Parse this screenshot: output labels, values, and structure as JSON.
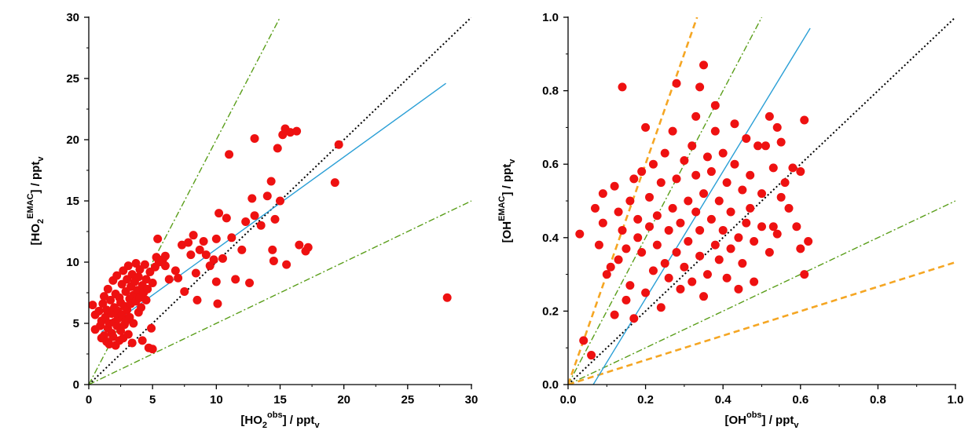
{
  "chart_data": [
    {
      "type": "scatter",
      "xlabel": {
        "base": "[HO",
        "sub": "2",
        "sup": "obs",
        "tail": "] / ppt",
        "unit_sub": "v"
      },
      "ylabel": {
        "base": "[HO",
        "sub": "2",
        "sup": "EMAC",
        "tail": "] / ppt",
        "unit_sub": "v"
      },
      "xlim": [
        0,
        30
      ],
      "ylim": [
        0,
        30
      ],
      "xticks": [
        0,
        5,
        10,
        15,
        20,
        25,
        30
      ],
      "yticks": [
        0,
        5,
        10,
        15,
        20,
        25,
        30
      ],
      "grid": false,
      "lines": [
        {
          "style": "dotted",
          "color": "#000000",
          "points": [
            [
              0,
              0
            ],
            [
              30,
              30
            ]
          ]
        },
        {
          "style": "dashdot",
          "color": "#5a9e1a",
          "points": [
            [
              0,
              0
            ],
            [
              15,
              30
            ]
          ]
        },
        {
          "style": "dashdot",
          "color": "#5a9e1a",
          "points": [
            [
              0,
              0
            ],
            [
              30,
              15
            ]
          ]
        },
        {
          "style": "solid",
          "color": "#2a9fd6",
          "points": [
            [
              1,
              4.3
            ],
            [
              28,
              24.6
            ]
          ]
        }
      ],
      "points_color": "#ee1111",
      "points": [
        [
          0.3,
          6.5
        ],
        [
          0.5,
          5.7
        ],
        [
          0.5,
          4.5
        ],
        [
          0.8,
          6.0
        ],
        [
          0.9,
          4.8
        ],
        [
          1.0,
          5.2
        ],
        [
          1.0,
          3.8
        ],
        [
          1.1,
          6.6
        ],
        [
          1.2,
          4.0
        ],
        [
          1.2,
          7.2
        ],
        [
          1.3,
          5.5
        ],
        [
          1.4,
          3.5
        ],
        [
          1.4,
          6.1
        ],
        [
          1.5,
          4.6
        ],
        [
          1.5,
          7.8
        ],
        [
          1.6,
          5.0
        ],
        [
          1.6,
          3.3
        ],
        [
          1.7,
          6.9
        ],
        [
          1.8,
          5.8
        ],
        [
          1.8,
          4.2
        ],
        [
          1.9,
          8.5
        ],
        [
          1.9,
          3.9
        ],
        [
          2.0,
          6.3
        ],
        [
          2.0,
          5.1
        ],
        [
          2.1,
          7.4
        ],
        [
          2.1,
          3.2
        ],
        [
          2.2,
          4.8
        ],
        [
          2.2,
          8.9
        ],
        [
          2.3,
          6.0
        ],
        [
          2.3,
          5.4
        ],
        [
          2.4,
          7.1
        ],
        [
          2.4,
          3.6
        ],
        [
          2.5,
          4.4
        ],
        [
          2.5,
          6.7
        ],
        [
          2.6,
          8.2
        ],
        [
          2.6,
          5.7
        ],
        [
          2.7,
          3.8
        ],
        [
          2.7,
          9.3
        ],
        [
          2.8,
          6.4
        ],
        [
          2.8,
          4.9
        ],
        [
          2.9,
          7.6
        ],
        [
          2.9,
          5.2
        ],
        [
          3.0,
          8.6
        ],
        [
          3.0,
          6.1
        ],
        [
          3.1,
          4.1
        ],
        [
          3.1,
          9.7
        ],
        [
          3.2,
          7.0
        ],
        [
          3.2,
          5.5
        ],
        [
          3.3,
          8.0
        ],
        [
          3.3,
          6.6
        ],
        [
          3.4,
          3.4
        ],
        [
          3.4,
          9.0
        ],
        [
          3.5,
          7.3
        ],
        [
          3.5,
          5.0
        ],
        [
          3.6,
          8.4
        ],
        [
          3.7,
          6.8
        ],
        [
          3.7,
          9.9
        ],
        [
          3.8,
          7.7
        ],
        [
          3.9,
          5.9
        ],
        [
          3.9,
          8.8
        ],
        [
          4.0,
          7.1
        ],
        [
          4.0,
          9.4
        ],
        [
          4.1,
          6.3
        ],
        [
          4.2,
          8.1
        ],
        [
          4.2,
          3.6
        ],
        [
          4.3,
          7.5
        ],
        [
          4.4,
          9.8
        ],
        [
          4.5,
          8.6
        ],
        [
          4.5,
          6.9
        ],
        [
          4.6,
          7.8
        ],
        [
          4.7,
          3.0
        ],
        [
          4.8,
          9.2
        ],
        [
          4.9,
          4.6
        ],
        [
          5.0,
          2.9
        ],
        [
          5.0,
          8.3
        ],
        [
          5.2,
          9.6
        ],
        [
          5.3,
          10.4
        ],
        [
          5.4,
          11.9
        ],
        [
          5.5,
          10.0
        ],
        [
          5.8,
          10.2
        ],
        [
          6.0,
          9.7
        ],
        [
          6.0,
          10.5
        ],
        [
          6.3,
          8.6
        ],
        [
          6.8,
          9.3
        ],
        [
          7.0,
          8.7
        ],
        [
          7.3,
          11.4
        ],
        [
          7.5,
          7.6
        ],
        [
          7.8,
          11.6
        ],
        [
          8.0,
          10.6
        ],
        [
          8.2,
          12.2
        ],
        [
          8.4,
          9.1
        ],
        [
          8.5,
          6.9
        ],
        [
          8.7,
          11.0
        ],
        [
          9.0,
          11.7
        ],
        [
          9.2,
          10.6
        ],
        [
          9.5,
          9.7
        ],
        [
          9.8,
          10.2
        ],
        [
          10.0,
          8.4
        ],
        [
          10.0,
          11.9
        ],
        [
          10.1,
          6.6
        ],
        [
          10.2,
          14.0
        ],
        [
          10.5,
          10.3
        ],
        [
          10.8,
          13.6
        ],
        [
          11.0,
          18.8
        ],
        [
          11.2,
          12.0
        ],
        [
          11.5,
          8.6
        ],
        [
          12.0,
          11.0
        ],
        [
          12.3,
          13.3
        ],
        [
          12.6,
          8.3
        ],
        [
          12.8,
          15.2
        ],
        [
          13.0,
          20.1
        ],
        [
          13.0,
          13.8
        ],
        [
          13.5,
          13.0
        ],
        [
          14.0,
          15.4
        ],
        [
          14.3,
          16.6
        ],
        [
          14.4,
          11.0
        ],
        [
          14.5,
          10.1
        ],
        [
          14.6,
          13.5
        ],
        [
          14.8,
          19.3
        ],
        [
          15.0,
          15.0
        ],
        [
          15.2,
          20.4
        ],
        [
          15.4,
          20.9
        ],
        [
          15.5,
          9.8
        ],
        [
          15.8,
          20.6
        ],
        [
          16.3,
          20.7
        ],
        [
          16.5,
          11.4
        ],
        [
          17.0,
          10.9
        ],
        [
          17.2,
          11.2
        ],
        [
          19.3,
          16.5
        ],
        [
          19.6,
          19.6
        ],
        [
          28.1,
          7.1
        ]
      ]
    },
    {
      "type": "scatter",
      "xlabel": {
        "base": "[OH",
        "sub": "",
        "sup": "obs",
        "tail": "] / ppt",
        "unit_sub": "v"
      },
      "ylabel": {
        "base": "[OH",
        "sub": "",
        "sup": "EMAC",
        "tail": "] / ppt",
        "unit_sub": "v"
      },
      "xlim": [
        0,
        1
      ],
      "ylim": [
        0,
        1
      ],
      "xticks": [
        0.0,
        0.2,
        0.4,
        0.6,
        0.8,
        1.0
      ],
      "yticks": [
        0.0,
        0.2,
        0.4,
        0.6,
        0.8,
        1.0
      ],
      "grid": false,
      "lines": [
        {
          "style": "dotted",
          "color": "#000000",
          "points": [
            [
              0,
              0
            ],
            [
              1,
              1
            ]
          ]
        },
        {
          "style": "dashdot",
          "color": "#5a9e1a",
          "points": [
            [
              0,
              0
            ],
            [
              0.5,
              1
            ]
          ]
        },
        {
          "style": "dashdot",
          "color": "#5a9e1a",
          "points": [
            [
              0,
              0
            ],
            [
              1,
              0.5
            ]
          ]
        },
        {
          "style": "dashed",
          "color": "#f5a623",
          "points": [
            [
              0,
              0
            ],
            [
              0.333,
              1
            ]
          ]
        },
        {
          "style": "dashed",
          "color": "#f5a623",
          "points": [
            [
              0,
              0
            ],
            [
              1,
              0.333
            ]
          ]
        },
        {
          "style": "solid",
          "color": "#2a9fd6",
          "points": [
            [
              0.065,
              0.0
            ],
            [
              0.625,
              0.97
            ]
          ]
        }
      ],
      "points_color": "#ee1111",
      "points": [
        [
          0.03,
          0.41
        ],
        [
          0.04,
          0.12
        ],
        [
          0.06,
          0.08
        ],
        [
          0.07,
          0.48
        ],
        [
          0.08,
          0.38
        ],
        [
          0.09,
          0.44
        ],
        [
          0.09,
          0.52
        ],
        [
          0.1,
          0.3
        ],
        [
          0.11,
          0.32
        ],
        [
          0.12,
          0.19
        ],
        [
          0.12,
          0.54
        ],
        [
          0.13,
          0.34
        ],
        [
          0.13,
          0.47
        ],
        [
          0.14,
          0.81
        ],
        [
          0.14,
          0.42
        ],
        [
          0.15,
          0.37
        ],
        [
          0.15,
          0.23
        ],
        [
          0.16,
          0.5
        ],
        [
          0.16,
          0.27
        ],
        [
          0.17,
          0.56
        ],
        [
          0.17,
          0.18
        ],
        [
          0.18,
          0.4
        ],
        [
          0.18,
          0.45
        ],
        [
          0.19,
          0.58
        ],
        [
          0.19,
          0.36
        ],
        [
          0.2,
          0.25
        ],
        [
          0.2,
          0.7
        ],
        [
          0.21,
          0.43
        ],
        [
          0.21,
          0.51
        ],
        [
          0.22,
          0.31
        ],
        [
          0.22,
          0.6
        ],
        [
          0.23,
          0.38
        ],
        [
          0.23,
          0.46
        ],
        [
          0.24,
          0.21
        ],
        [
          0.24,
          0.55
        ],
        [
          0.25,
          0.33
        ],
        [
          0.25,
          0.63
        ],
        [
          0.26,
          0.42
        ],
        [
          0.26,
          0.29
        ],
        [
          0.27,
          0.48
        ],
        [
          0.27,
          0.69
        ],
        [
          0.28,
          0.82
        ],
        [
          0.28,
          0.36
        ],
        [
          0.28,
          0.56
        ],
        [
          0.29,
          0.26
        ],
        [
          0.29,
          0.44
        ],
        [
          0.3,
          0.61
        ],
        [
          0.3,
          0.32
        ],
        [
          0.31,
          0.5
        ],
        [
          0.31,
          0.39
        ],
        [
          0.32,
          0.65
        ],
        [
          0.32,
          0.28
        ],
        [
          0.33,
          0.47
        ],
        [
          0.33,
          0.57
        ],
        [
          0.33,
          0.73
        ],
        [
          0.34,
          0.35
        ],
        [
          0.34,
          0.42
        ],
        [
          0.34,
          0.81
        ],
        [
          0.35,
          0.87
        ],
        [
          0.35,
          0.24
        ],
        [
          0.35,
          0.52
        ],
        [
          0.36,
          0.62
        ],
        [
          0.36,
          0.3
        ],
        [
          0.37,
          0.45
        ],
        [
          0.37,
          0.58
        ],
        [
          0.38,
          0.38
        ],
        [
          0.38,
          0.69
        ],
        [
          0.38,
          0.76
        ],
        [
          0.39,
          0.34
        ],
        [
          0.39,
          0.5
        ],
        [
          0.4,
          0.42
        ],
        [
          0.4,
          0.63
        ],
        [
          0.41,
          0.29
        ],
        [
          0.41,
          0.55
        ],
        [
          0.42,
          0.47
        ],
        [
          0.42,
          0.37
        ],
        [
          0.43,
          0.6
        ],
        [
          0.43,
          0.71
        ],
        [
          0.44,
          0.4
        ],
        [
          0.44,
          0.26
        ],
        [
          0.45,
          0.53
        ],
        [
          0.45,
          0.33
        ],
        [
          0.46,
          0.67
        ],
        [
          0.46,
          0.44
        ],
        [
          0.47,
          0.57
        ],
        [
          0.47,
          0.48
        ],
        [
          0.48,
          0.39
        ],
        [
          0.48,
          0.28
        ],
        [
          0.49,
          0.65
        ],
        [
          0.5,
          0.52
        ],
        [
          0.5,
          0.43
        ],
        [
          0.51,
          0.65
        ],
        [
          0.52,
          0.36
        ],
        [
          0.52,
          0.73
        ],
        [
          0.53,
          0.59
        ],
        [
          0.53,
          0.43
        ],
        [
          0.54,
          0.7
        ],
        [
          0.54,
          0.41
        ],
        [
          0.55,
          0.66
        ],
        [
          0.55,
          0.51
        ],
        [
          0.56,
          0.55
        ],
        [
          0.57,
          0.48
        ],
        [
          0.58,
          0.59
        ],
        [
          0.59,
          0.43
        ],
        [
          0.6,
          0.37
        ],
        [
          0.6,
          0.58
        ],
        [
          0.61,
          0.3
        ],
        [
          0.61,
          0.72
        ],
        [
          0.62,
          0.39
        ]
      ]
    }
  ]
}
